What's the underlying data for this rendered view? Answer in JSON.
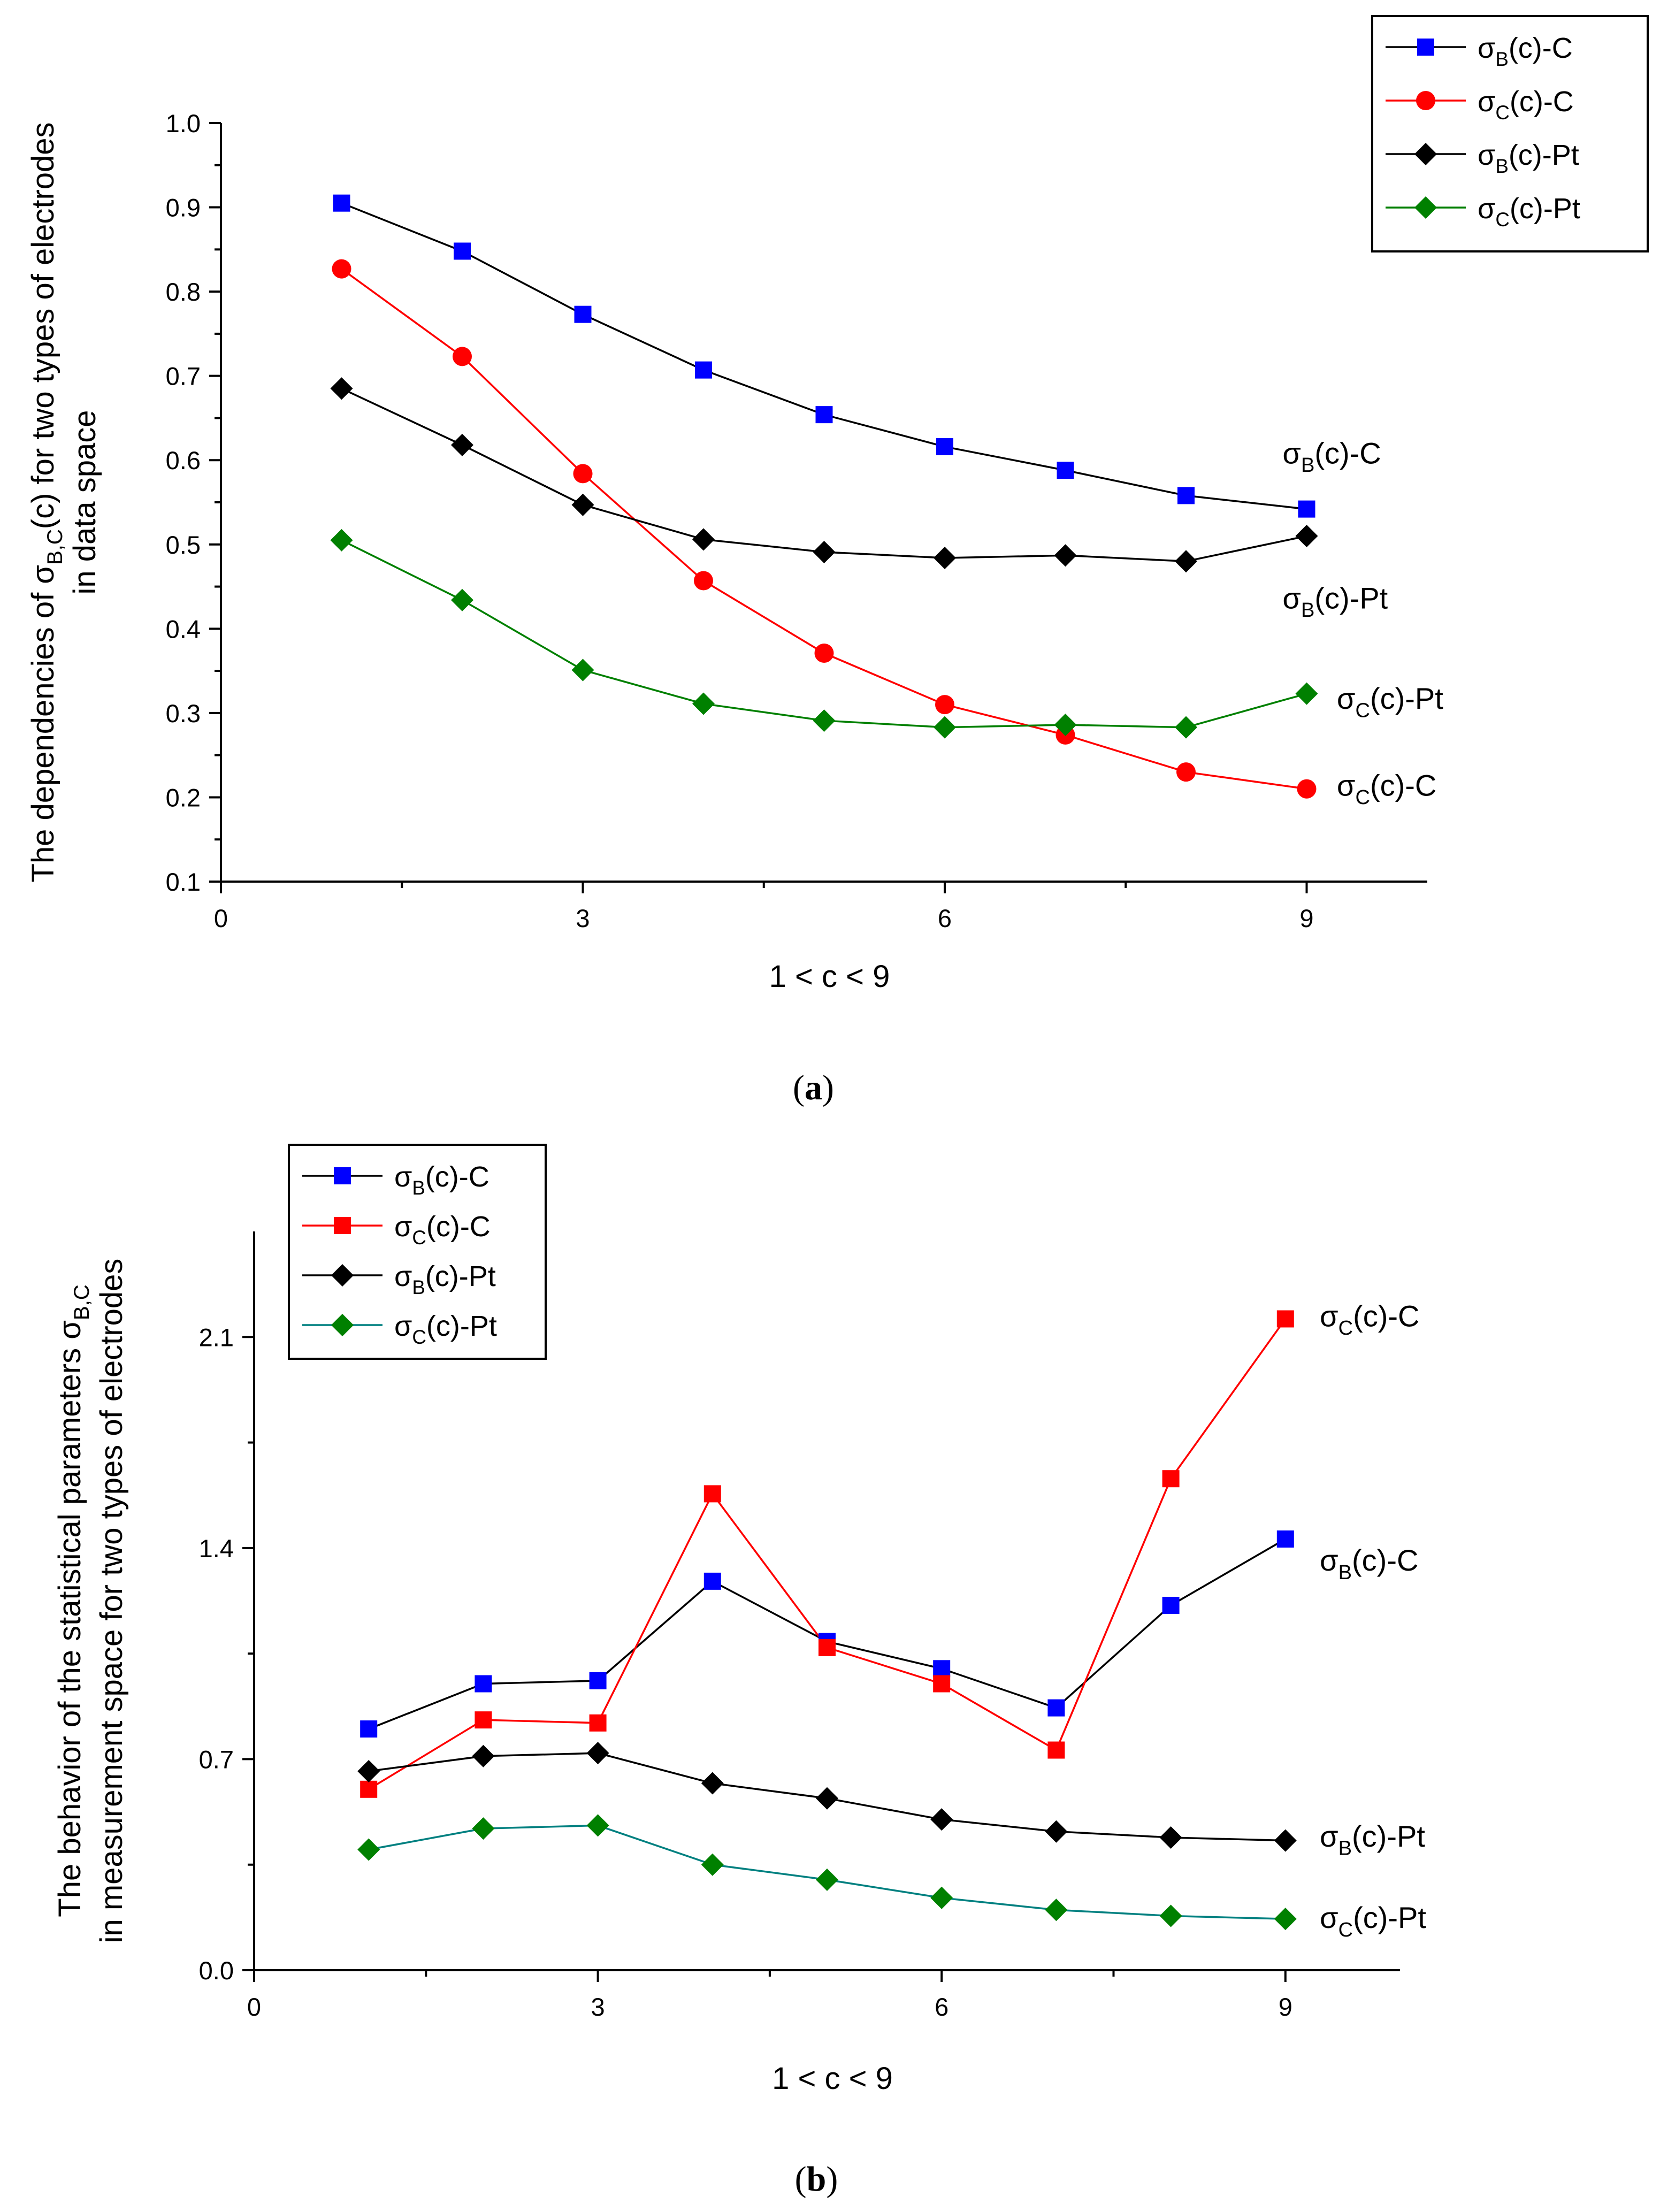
{
  "chart_data": [
    {
      "id": "a",
      "type": "line",
      "caption_open": "(",
      "caption_letter": "a",
      "caption_close": ")",
      "ylabel_lines": [
        [
          {
            "t": "The dependencies of σ"
          },
          {
            "t": "B,C",
            "sub": true
          },
          {
            "t": "(c) for two types of electrodes"
          }
        ],
        [
          {
            "t": "in data space"
          }
        ]
      ],
      "xlabel": "1 < c < 9",
      "xlim": [
        0,
        10
      ],
      "ylim": [
        0.1,
        1.0
      ],
      "x_ticks": [
        0,
        3,
        6,
        9
      ],
      "x_tick_labels": [
        "0",
        "3",
        "6",
        "9"
      ],
      "x_minor": [
        1.5,
        4.5,
        7.5
      ],
      "y_ticks": [
        0.1,
        0.2,
        0.3,
        0.4,
        0.5,
        0.6,
        0.7,
        0.8,
        0.9,
        1.0
      ],
      "y_tick_labels": [
        "0.1",
        "0.2",
        "0.3",
        "0.4",
        "0.5",
        "0.6",
        "0.7",
        "0.8",
        "0.9",
        "1.0"
      ],
      "y_minor": [
        0.15,
        0.25,
        0.35,
        0.45,
        0.55,
        0.65,
        0.75,
        0.85,
        0.95
      ],
      "x": [
        1,
        2,
        3,
        4,
        5,
        6,
        7,
        8,
        9
      ],
      "series": [
        {
          "name": "σB(c)-C",
          "base": "σ",
          "sub": "B",
          "rest": "(c)-C",
          "marker": "square",
          "color": "#0000ff",
          "line_color": "#000000",
          "values": [
            0.905,
            0.848,
            0.773,
            0.707,
            0.654,
            0.616,
            0.588,
            0.558,
            0.542
          ]
        },
        {
          "name": "σC(c)-C",
          "base": "σ",
          "sub": "C",
          "rest": "(c)-C",
          "marker": "circle",
          "color": "#ff0000",
          "line_color": "#ff0000",
          "values": [
            0.827,
            0.723,
            0.584,
            0.457,
            0.371,
            0.31,
            0.274,
            0.23,
            0.21
          ]
        },
        {
          "name": "σB(c)-Pt",
          "base": "σ",
          "sub": "B",
          "rest": "(c)-Pt",
          "marker": "diamond",
          "color": "#000000",
          "line_color": "#000000",
          "values": [
            0.685,
            0.618,
            0.547,
            0.506,
            0.491,
            0.484,
            0.487,
            0.48,
            0.51
          ]
        },
        {
          "name": "σC(c)-Pt",
          "base": "σ",
          "sub": "C",
          "rest": "(c)-Pt",
          "marker": "diamond",
          "color": "#008000",
          "line_color": "#008000",
          "values": [
            0.505,
            0.434,
            0.351,
            0.311,
            0.291,
            0.283,
            0.286,
            0.283,
            0.323
          ]
        }
      ],
      "annotations": [
        {
          "base": "σ",
          "sub": "B",
          "rest": "(c)-C",
          "at_x": 8.8,
          "at_y": 0.596
        },
        {
          "base": "σ",
          "sub": "B",
          "rest": "(c)-Pt",
          "at_x": 8.8,
          "at_y": 0.424
        },
        {
          "base": "σ",
          "sub": "C",
          "rest": "(c)-Pt",
          "at_x": 9.25,
          "at_y": 0.305
        },
        {
          "base": "σ",
          "sub": "C",
          "rest": "(c)-C",
          "at_x": 9.25,
          "at_y": 0.202
        }
      ],
      "legend": "top-right"
    },
    {
      "id": "b",
      "type": "line",
      "caption_open": "(",
      "caption_letter": "b",
      "caption_close": ")",
      "ylabel_lines": [
        [
          {
            "t": "The behavior of the statistical parameters σ"
          },
          {
            "t": "B,C",
            "sub": true
          }
        ],
        [
          {
            "t": "in measurement space for two types of electrodes"
          }
        ]
      ],
      "xlabel": "1 < c < 9",
      "xlim": [
        0,
        10
      ],
      "ylim": [
        0.0,
        2.45
      ],
      "x_ticks": [
        0,
        3,
        6,
        9
      ],
      "x_tick_labels": [
        "0",
        "3",
        "6",
        "9"
      ],
      "x_minor": [
        1.5,
        4.5,
        7.5
      ],
      "y_ticks": [
        0.0,
        0.7,
        1.4,
        2.1
      ],
      "y_tick_labels": [
        "0.0",
        "0.7",
        "1.4",
        "2.1"
      ],
      "y_minor": [
        0.35,
        1.05,
        1.75
      ],
      "x": [
        1,
        2,
        3,
        4,
        5,
        6,
        7,
        8,
        9
      ],
      "series": [
        {
          "name": "σB(c)-C",
          "base": "σ",
          "sub": "B",
          "rest": "(c)-C",
          "marker": "square",
          "color": "#0000ff",
          "line_color": "#000000",
          "values": [
            0.8,
            0.95,
            0.96,
            1.29,
            1.09,
            1.0,
            0.87,
            1.21,
            1.43
          ]
        },
        {
          "name": "σC(c)-C",
          "base": "σ",
          "sub": "C",
          "rest": "(c)-C",
          "marker": "square",
          "color": "#ff0000",
          "line_color": "#ff0000",
          "values": [
            0.6,
            0.83,
            0.82,
            1.58,
            1.07,
            0.95,
            0.73,
            1.63,
            2.16
          ]
        },
        {
          "name": "σB(c)-Pt",
          "base": "σ",
          "sub": "B",
          "rest": "(c)-Pt",
          "marker": "diamond",
          "color": "#000000",
          "line_color": "#000000",
          "values": [
            0.66,
            0.71,
            0.72,
            0.62,
            0.57,
            0.5,
            0.46,
            0.44,
            0.43
          ]
        },
        {
          "name": "σC(c)-Pt",
          "base": "σ",
          "sub": "C",
          "rest": "(c)-Pt",
          "marker": "diamond",
          "color": "#008000",
          "line_color": "#008080",
          "values": [
            0.4,
            0.47,
            0.48,
            0.35,
            0.3,
            0.24,
            0.2,
            0.18,
            0.17
          ]
        }
      ],
      "annotations": [
        {
          "base": "σ",
          "sub": "C",
          "rest": "(c)-C",
          "at_x": 9.3,
          "at_y": 2.135
        },
        {
          "base": "σ",
          "sub": "B",
          "rest": "(c)-C",
          "at_x": 9.3,
          "at_y": 1.325
        },
        {
          "base": "σ",
          "sub": "B",
          "rest": "(c)-Pt",
          "at_x": 9.3,
          "at_y": 0.41
        },
        {
          "base": "σ",
          "sub": "C",
          "rest": "(c)-Pt",
          "at_x": 9.3,
          "at_y": 0.14
        }
      ],
      "legend": "top-left"
    }
  ]
}
